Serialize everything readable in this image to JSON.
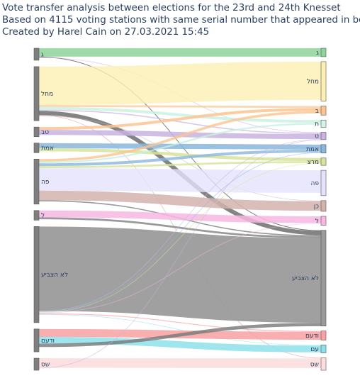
{
  "title": {
    "line1": "Vote transfer analysis between elections for the 23rd and 24th Knesset",
    "line2": "Based on 4115 voting stations with same serial number that appeared in both",
    "line3": "Created by Harel Cain on 27.03.2021 15:45"
  },
  "diagram": {
    "type": "sankey",
    "left_nodes": [
      {
        "id": "L-g",
        "label": "ג",
        "color": "#7f7f7f",
        "weight": 2
      },
      {
        "id": "L-mhl",
        "label": "מחל",
        "color": "#7f7f7f",
        "weight": 9
      },
      {
        "id": "L-tb",
        "label": "טב",
        "color": "#7f7f7f",
        "weight": 1.6
      },
      {
        "id": "L-emet",
        "label": "אמת",
        "color": "#7f7f7f",
        "weight": 1.6
      },
      {
        "id": "L-pe",
        "label": "פה",
        "color": "#7f7f7f",
        "weight": 7.5
      },
      {
        "id": "L-l",
        "label": "ל",
        "color": "#7f7f7f",
        "weight": 1.6
      },
      {
        "id": "L-noVote",
        "label": "לא הצביע",
        "color": "#7f7f7f",
        "weight": 16
      },
      {
        "id": "L-vdam",
        "label": "ודעם",
        "color": "#7f7f7f",
        "weight": 3.8
      },
      {
        "id": "L-shas",
        "label": "שס",
        "color": "#7f7f7f",
        "weight": 2
      }
    ],
    "right_nodes": [
      {
        "id": "R-g",
        "label": "ג",
        "color": "#8fd49a",
        "weight": 1.5
      },
      {
        "id": "R-mhl",
        "label": "מחל",
        "color": "#fdf0b3",
        "weight": 7
      },
      {
        "id": "R-b",
        "label": "ב",
        "color": "#fbc490",
        "weight": 1.6
      },
      {
        "id": "R-t",
        "label": "ת",
        "color": "#d6f3ea",
        "weight": 1.3
      },
      {
        "id": "R-tt",
        "label": "ט",
        "color": "#c9b3e0",
        "weight": 1.3
      },
      {
        "id": "R-emet",
        "label": "אמת",
        "color": "#8ab6dc",
        "weight": 1.5
      },
      {
        "id": "R-meretz",
        "label": "מרצ",
        "color": "#d6e39a",
        "weight": 1.3
      },
      {
        "id": "R-pe",
        "label": "פה",
        "color": "#e5e2fb",
        "weight": 4.5
      },
      {
        "id": "R-kn",
        "label": "כן",
        "color": "#d2b3ae",
        "weight": 1.9
      },
      {
        "id": "R-l",
        "label": "ל",
        "color": "#f6b7e0",
        "weight": 1.6
      },
      {
        "id": "R-noVote",
        "label": "לא הצביע",
        "color": "#9a9a9a",
        "weight": 17
      },
      {
        "id": "R-vdam",
        "label": "ודעם",
        "color": "#f8a0a2",
        "weight": 1.6
      },
      {
        "id": "R-am",
        "label": "עם",
        "color": "#8ee1ea",
        "weight": 1.4
      },
      {
        "id": "R-shas",
        "label": "שס",
        "color": "#fbdede",
        "weight": 2.2
      }
    ],
    "links": [
      {
        "source": "L-g",
        "target": "R-g",
        "value": 1.5,
        "color": "rgba(143,212,154,0.85)"
      },
      {
        "source": "L-g",
        "target": "R-noVote",
        "value": 0.12,
        "color": "rgba(90,90,90,0.8)"
      },
      {
        "source": "L-g",
        "target": "R-tt",
        "value": 0.1,
        "color": "rgba(201,179,224,0.6)"
      },
      {
        "source": "L-mhl",
        "target": "R-mhl",
        "value": 6.8,
        "color": "rgba(253,240,179,0.8)"
      },
      {
        "source": "L-mhl",
        "target": "R-b",
        "value": 0.35,
        "color": "rgba(251,196,144,0.7)"
      },
      {
        "source": "L-mhl",
        "target": "R-t",
        "value": 0.5,
        "color": "rgba(200,240,225,0.8)"
      },
      {
        "source": "L-mhl",
        "target": "R-tt",
        "value": 0.2,
        "color": "rgba(201,179,224,0.7)"
      },
      {
        "source": "L-mhl",
        "target": "R-noVote",
        "value": 0.75,
        "color": "rgba(110,110,110,0.85)"
      },
      {
        "source": "L-mhl",
        "target": "R-shas",
        "value": 0.05,
        "color": "rgba(220,150,150,0.6)"
      },
      {
        "source": "L-mhl",
        "target": "R-kn",
        "value": 0.05,
        "color": "rgba(210,179,174,0.6)"
      },
      {
        "source": "L-tb",
        "target": "R-b",
        "value": 0.5,
        "color": "rgba(251,196,144,0.85)"
      },
      {
        "source": "L-tb",
        "target": "R-tt",
        "value": 0.9,
        "color": "rgba(201,179,224,0.85)"
      },
      {
        "source": "L-emet",
        "target": "R-emet",
        "value": 0.9,
        "color": "rgba(138,182,220,0.85)"
      },
      {
        "source": "L-emet",
        "target": "R-meretz",
        "value": 0.55,
        "color": "rgba(214,227,154,0.85)"
      },
      {
        "source": "L-pe",
        "target": "R-b",
        "value": 0.45,
        "color": "rgba(251,196,144,0.8)"
      },
      {
        "source": "L-pe",
        "target": "R-t",
        "value": 0.3,
        "color": "rgba(200,240,225,0.8)"
      },
      {
        "source": "L-pe",
        "target": "R-emet",
        "value": 0.5,
        "color": "rgba(138,182,220,0.8)"
      },
      {
        "source": "L-pe",
        "target": "R-meretz",
        "value": 0.35,
        "color": "rgba(214,227,154,0.8)"
      },
      {
        "source": "L-pe",
        "target": "R-pe",
        "value": 4.0,
        "color": "rgba(229,226,251,0.8)"
      },
      {
        "source": "L-pe",
        "target": "R-kn",
        "value": 1.7,
        "color": "rgba(210,179,174,0.85)"
      },
      {
        "source": "L-pe",
        "target": "R-noVote",
        "value": 0.2,
        "color": "rgba(120,120,120,0.75)"
      },
      {
        "source": "L-l",
        "target": "R-l",
        "value": 1.2,
        "color": "rgba(246,183,224,0.85)"
      },
      {
        "source": "L-l",
        "target": "R-noVote",
        "value": 0.35,
        "color": "rgba(120,120,120,0.75)"
      },
      {
        "source": "L-noVote",
        "target": "R-noVote",
        "value": 15.0,
        "color": "rgba(150,150,150,0.9)"
      },
      {
        "source": "L-noVote",
        "target": "R-tt",
        "value": 0.1,
        "color": "rgba(201,179,224,0.6)"
      },
      {
        "source": "L-noVote",
        "target": "R-emet",
        "value": 0.05,
        "color": "rgba(138,182,220,0.6)"
      },
      {
        "source": "L-noVote",
        "target": "R-meretz",
        "value": 0.05,
        "color": "rgba(214,227,154,0.6)"
      },
      {
        "source": "L-noVote",
        "target": "R-l",
        "value": 0.1,
        "color": "rgba(246,183,224,0.6)"
      },
      {
        "source": "L-noVote",
        "target": "R-vdam",
        "value": 0.15,
        "color": "rgba(248,160,162,0.7)"
      },
      {
        "source": "L-noVote",
        "target": "R-am",
        "value": 0.1,
        "color": "rgba(142,225,234,0.6)"
      },
      {
        "source": "L-vdam",
        "target": "R-vdam",
        "value": 1.4,
        "color": "rgba(248,160,162,0.85)"
      },
      {
        "source": "L-vdam",
        "target": "R-am",
        "value": 1.2,
        "color": "rgba(142,225,234,0.85)"
      },
      {
        "source": "L-vdam",
        "target": "R-noVote",
        "value": 0.6,
        "color": "rgba(120,120,120,0.8)"
      },
      {
        "source": "L-shas",
        "target": "R-shas",
        "value": 1.7,
        "color": "rgba(251,222,222,0.9)"
      },
      {
        "source": "L-shas",
        "target": "R-tt",
        "value": 0.05,
        "color": "rgba(201,179,224,0.6)"
      }
    ]
  }
}
